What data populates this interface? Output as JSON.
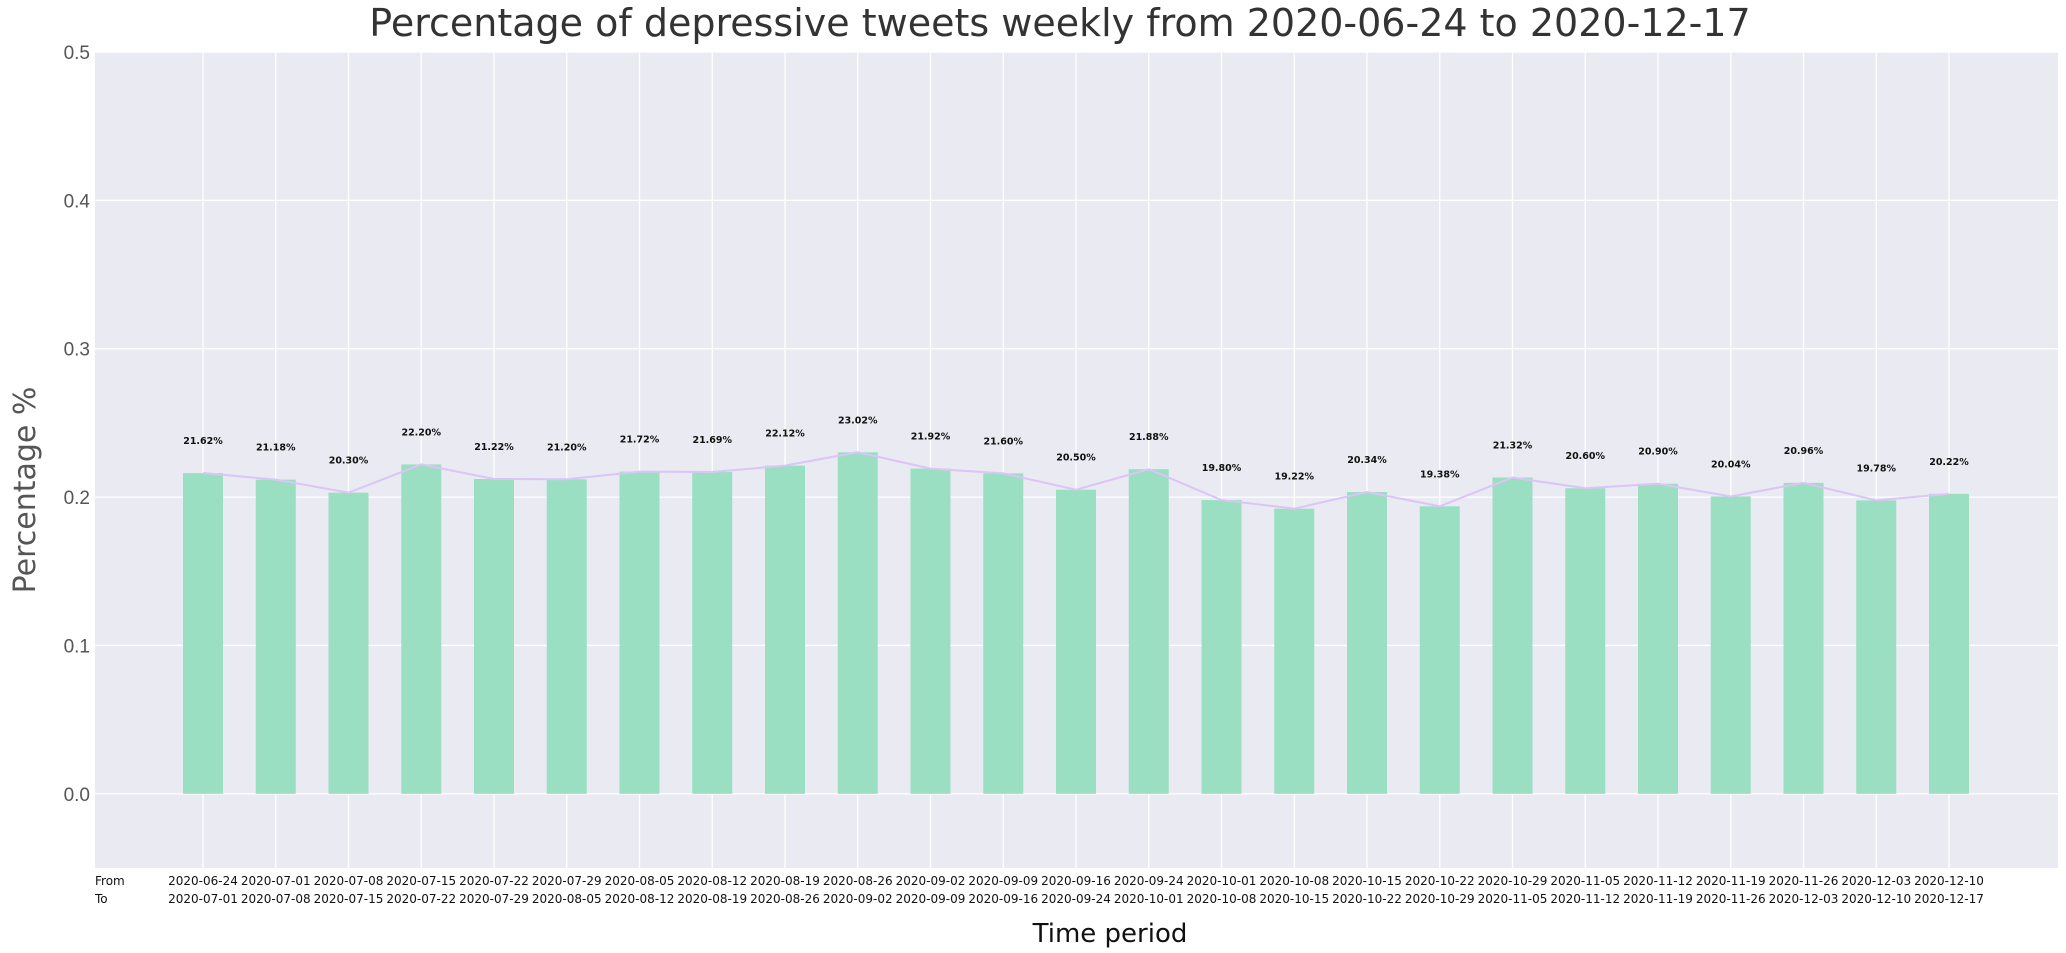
{
  "chart_data": {
    "type": "bar",
    "title": "Percentage of depressive tweets weekly from 2020-06-24 to 2020-12-17",
    "xlabel": "Time period",
    "ylabel": "Percentage %",
    "ylim": [
      -0.05,
      0.5
    ],
    "yticks": [
      "0.0",
      "0.1",
      "0.2",
      "0.3",
      "0.4",
      "0.5"
    ],
    "row_labels": [
      "From",
      "To"
    ],
    "from": [
      "2020-06-24",
      "2020-07-01",
      "2020-07-08",
      "2020-07-15",
      "2020-07-22",
      "2020-07-29",
      "2020-08-05",
      "2020-08-12",
      "2020-08-19",
      "2020-08-26",
      "2020-09-02",
      "2020-09-09",
      "2020-09-16",
      "2020-09-24",
      "2020-10-01",
      "2020-10-08",
      "2020-10-15",
      "2020-10-22",
      "2020-10-29",
      "2020-11-05",
      "2020-11-12",
      "2020-11-19",
      "2020-11-26",
      "2020-12-03",
      "2020-12-10"
    ],
    "to": [
      "2020-07-01",
      "2020-07-08",
      "2020-07-15",
      "2020-07-22",
      "2020-07-29",
      "2020-08-05",
      "2020-08-12",
      "2020-08-19",
      "2020-08-26",
      "2020-09-02",
      "2020-09-09",
      "2020-09-16",
      "2020-09-24",
      "2020-10-01",
      "2020-10-08",
      "2020-10-15",
      "2020-10-22",
      "2020-10-29",
      "2020-11-05",
      "2020-11-12",
      "2020-11-19",
      "2020-11-26",
      "2020-12-03",
      "2020-12-10",
      "2020-12-17"
    ],
    "values": [
      0.2162,
      0.2118,
      0.203,
      0.222,
      0.2122,
      0.212,
      0.2172,
      0.2169,
      0.2212,
      0.2302,
      0.2192,
      0.216,
      0.205,
      0.2188,
      0.198,
      0.1922,
      0.2034,
      0.1938,
      0.2132,
      0.206,
      0.209,
      0.2004,
      0.2096,
      0.1978,
      0.2022
    ],
    "labels": [
      "21.62%",
      "21.18%",
      "20.30%",
      "22.20%",
      "21.22%",
      "21.20%",
      "21.72%",
      "21.69%",
      "22.12%",
      "23.02%",
      "21.92%",
      "21.60%",
      "20.50%",
      "21.88%",
      "19.80%",
      "19.22%",
      "20.34%",
      "19.38%",
      "21.32%",
      "20.60%",
      "20.90%",
      "20.04%",
      "20.96%",
      "19.78%",
      "20.22%"
    ],
    "grid": true,
    "colors": {
      "bar": "#9adfc2",
      "line": "#dcc4f7",
      "plot_bg": "#eaeaf2",
      "grid": "#ffffff"
    }
  }
}
